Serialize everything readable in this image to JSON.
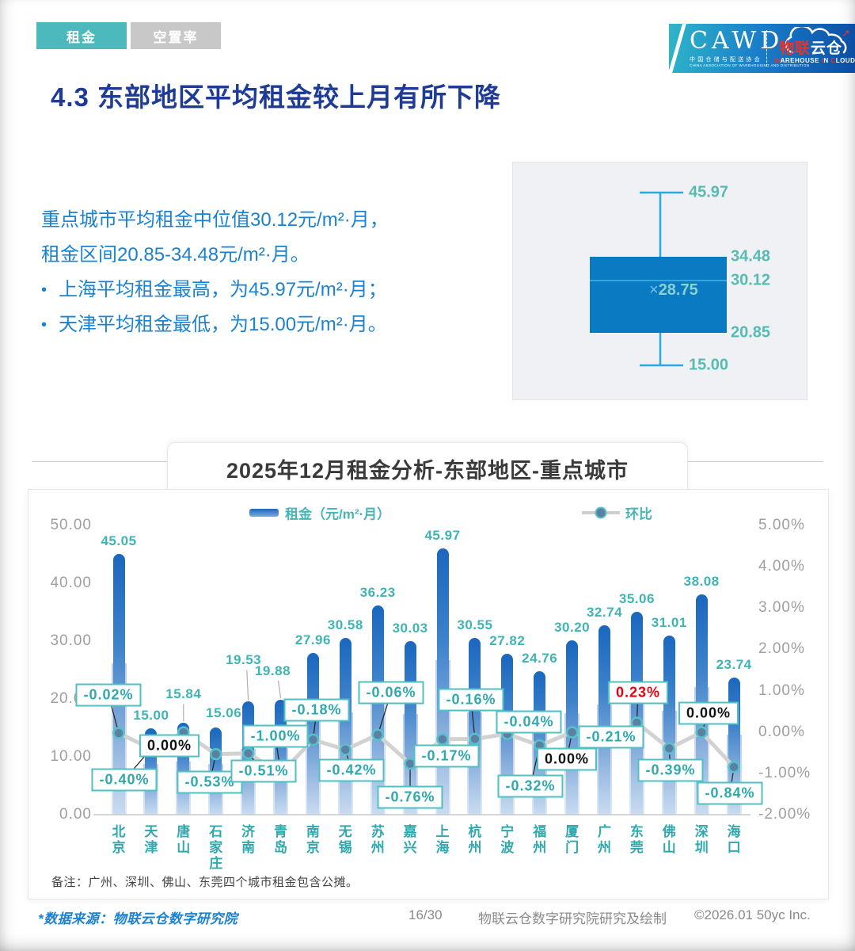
{
  "tabs": [
    {
      "label": "租金",
      "active": true
    },
    {
      "label": "空置率",
      "active": false
    }
  ],
  "brand": {
    "cawd": "CAWD",
    "cawd_cn": "中国仓储与配送协会",
    "cawd_en": "CHINA ASSOCIATION OF WAREHOUSING AND DISTRIBUTION",
    "cloud_logo_red": "物联",
    "cloud_logo_white": "云仓",
    "cloud_caption": "WAREHOUSE IN CLOUD",
    "cloud_arrow": "➚"
  },
  "page_title": "4.3 东部地区平均租金较上月有所下降",
  "summary": {
    "line1": "重点城市平均租金中位值30.12元/m²·月，",
    "line2": "租金区间20.85-34.48元/m²·月。",
    "bullet_glyph": "•",
    "bullets": [
      "上海平均租金最高，为45.97元/m²·月；",
      "天津平均租金最低，为15.00元/m²·月。"
    ]
  },
  "boxplot": {
    "max": "45.97",
    "q3": "34.48",
    "median": "30.12",
    "mean": "28.75",
    "mean_marker": "×",
    "q1": "20.85",
    "min": "15.00"
  },
  "chart_title": "2025年12月租金分析-东部地区-重点城市",
  "chart_data": {
    "type": "bar+line",
    "title": "2025年12月租金分析-东部地区-重点城市",
    "categories": [
      "北京",
      "天津",
      "唐山",
      "石家庄",
      "济南",
      "青岛",
      "南京",
      "无锡",
      "苏州",
      "嘉兴",
      "上海",
      "杭州",
      "宁波",
      "福州",
      "厦门",
      "广州",
      "东莞",
      "佛山",
      "深圳",
      "海口"
    ],
    "series": [
      {
        "name": "租金（元/m²·月）",
        "type": "bar",
        "values": [
          45.05,
          15.0,
          15.84,
          15.06,
          19.53,
          19.88,
          27.96,
          30.58,
          36.23,
          30.03,
          45.97,
          30.55,
          27.82,
          24.76,
          30.2,
          32.74,
          35.06,
          31.01,
          38.08,
          23.74
        ],
        "labels": [
          "45.05",
          "15.00",
          "15.84",
          "15.06",
          "19.53",
          "19.88",
          "27.96",
          "30.58",
          "36.23",
          "30.03",
          "45.97",
          "30.55",
          "27.82",
          "24.76",
          "30.20",
          "32.74",
          "35.06",
          "31.01",
          "38.08",
          "23.74"
        ]
      },
      {
        "name": "环比",
        "type": "line",
        "values": [
          -0.02,
          -0.4,
          0.0,
          -0.53,
          -0.51,
          -1.0,
          -0.18,
          -0.42,
          -0.06,
          -0.76,
          -0.17,
          -0.16,
          -0.04,
          -0.32,
          0.0,
          -0.21,
          0.23,
          -0.39,
          0.0,
          -0.84
        ],
        "labels": [
          "-0.02%",
          "-0.40%",
          "0.00%",
          "-0.53%",
          "-0.51%",
          "-1.00%",
          "-0.18%",
          "-0.42%",
          "-0.06%",
          "-0.76%",
          "-0.17%",
          "-0.16%",
          "-0.04%",
          "-0.32%",
          "0.00%",
          "-0.21%",
          "0.23%",
          "-0.39%",
          "0.00%",
          "-0.84%"
        ]
      }
    ],
    "left_axis": {
      "ticks": [
        "50.00",
        "40.00",
        "30.00",
        "20.00",
        "10.00",
        "0.00"
      ],
      "min": 0,
      "max": 50
    },
    "right_axis": {
      "ticks": [
        "5.00%",
        "4.00%",
        "3.00%",
        "2.00%",
        "1.00%",
        "0.00%",
        "-1.00%",
        "-2.00%"
      ],
      "min": -2,
      "max": 5
    },
    "grid": false,
    "legend_position": "top"
  },
  "note": "备注：广州、深圳、佛山、东莞四个城市租金包含公摊。",
  "footer": {
    "source": "*数据来源：物联云仓数字研究院",
    "page": "16/30",
    "credit": "物联云仓数字研究院研究及绘制",
    "copyright": "©2026.01 50yc Inc."
  },
  "colors": {
    "tab_active": "#4cb9bd",
    "tab_inactive": "#c8c8c8",
    "title_blue": "#1e3c96",
    "body_blue": "#1b82d2",
    "teal_label": "#3fb4b4",
    "box_fill": "#0a7ac2",
    "whisker_blue": "#29aae1",
    "bar_top": "#1a67be",
    "bar_bottom": "#cadcf1",
    "line_gray": "#d2d2d2",
    "negative_text": "#2fa9ae",
    "zero_text": "#111111",
    "positive_text": "#e60012",
    "banner_left": "#2eb6c9",
    "banner_right": "#0c4da4",
    "logo_red": "#e8332a"
  }
}
